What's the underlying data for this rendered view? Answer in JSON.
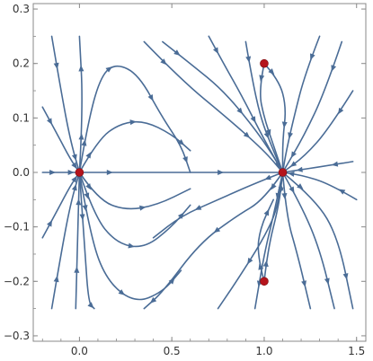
{
  "chart_data": {
    "type": "scatter",
    "subtype": "stream plot",
    "title": "",
    "xlabel": "",
    "ylabel": "",
    "xlim": [
      -0.25,
      1.55
    ],
    "ylim": [
      -0.31,
      0.31
    ],
    "x_ticks": [
      {
        "value": 0.0,
        "label": "0.0"
      },
      {
        "value": 0.5,
        "label": "0.5"
      },
      {
        "value": 1.0,
        "label": "1.0"
      },
      {
        "value": 1.5,
        "label": "1.5"
      }
    ],
    "y_ticks": [
      {
        "value": 0.3,
        "label": "0.3"
      },
      {
        "value": 0.2,
        "label": "0.2"
      },
      {
        "value": 0.1,
        "label": "0.1"
      },
      {
        "value": 0.0,
        "label": "0.0"
      },
      {
        "value": -0.1,
        "label": "−0.1"
      },
      {
        "value": -0.2,
        "label": "−0.2"
      },
      {
        "value": -0.3,
        "label": "−0.3"
      }
    ],
    "grid": false,
    "legend": "none",
    "points": [
      {
        "x": 0.0,
        "y": 0.0
      },
      {
        "x": 1.1,
        "y": 0.0
      },
      {
        "x": 1.0,
        "y": 0.2
      },
      {
        "x": 1.0,
        "y": -0.2
      }
    ],
    "streamlines": [
      [
        [
          -0.2,
          0.0
        ],
        [
          -0.1,
          0.0
        ],
        [
          0.0,
          0.0
        ]
      ],
      [
        [
          0.0,
          0.0
        ],
        [
          0.3,
          0.0
        ],
        [
          0.6,
          0.0
        ],
        [
          0.9,
          0.0
        ],
        [
          1.1,
          0.0
        ]
      ],
      [
        [
          1.5,
          -0.05
        ],
        [
          1.35,
          -0.02
        ],
        [
          1.2,
          -0.005
        ],
        [
          1.1,
          0.0
        ]
      ],
      [
        [
          1.48,
          0.02
        ],
        [
          1.3,
          0.01
        ],
        [
          1.1,
          0.0
        ]
      ],
      [
        [
          -0.15,
          0.25
        ],
        [
          -0.1,
          0.15
        ],
        [
          -0.05,
          0.06
        ],
        [
          0.0,
          0.0
        ]
      ],
      [
        [
          -0.2,
          0.12
        ],
        [
          -0.12,
          0.07
        ],
        [
          -0.05,
          0.025
        ],
        [
          0.0,
          0.0
        ]
      ],
      [
        [
          -0.15,
          -0.25
        ],
        [
          -0.1,
          -0.15
        ],
        [
          -0.05,
          -0.06
        ],
        [
          0.0,
          0.0
        ]
      ],
      [
        [
          -0.2,
          -0.12
        ],
        [
          -0.12,
          -0.07
        ],
        [
          -0.05,
          -0.025
        ],
        [
          0.0,
          0.0
        ]
      ],
      [
        [
          -0.02,
          -0.25
        ],
        [
          -0.01,
          -0.12
        ],
        [
          0.0,
          0.0
        ]
      ],
      [
        [
          0.0,
          0.0
        ],
        [
          0.02,
          0.12
        ],
        [
          0.0,
          0.25
        ]
      ],
      [
        [
          0.0,
          0.0
        ],
        [
          0.05,
          0.1
        ],
        [
          0.12,
          0.18
        ],
        [
          0.2,
          0.2
        ],
        [
          0.32,
          0.18
        ],
        [
          0.45,
          0.1
        ],
        [
          0.55,
          0.05
        ],
        [
          0.6,
          0.0
        ]
      ],
      [
        [
          0.0,
          0.0
        ],
        [
          0.1,
          0.06
        ],
        [
          0.22,
          0.09
        ],
        [
          0.35,
          0.095
        ],
        [
          0.5,
          0.07
        ],
        [
          0.6,
          0.04
        ]
      ],
      [
        [
          0.0,
          0.0
        ],
        [
          0.1,
          -0.05
        ],
        [
          0.25,
          -0.07
        ],
        [
          0.42,
          -0.06
        ],
        [
          0.6,
          -0.03
        ]
      ],
      [
        [
          0.0,
          0.0
        ],
        [
          0.08,
          -0.08
        ],
        [
          0.2,
          -0.13
        ],
        [
          0.35,
          -0.14
        ],
        [
          0.5,
          -0.1
        ],
        [
          0.6,
          -0.06
        ]
      ],
      [
        [
          0.0,
          0.0
        ],
        [
          0.06,
          -0.12
        ],
        [
          0.15,
          -0.2
        ],
        [
          0.3,
          -0.24
        ],
        [
          0.45,
          -0.22
        ],
        [
          0.55,
          -0.18
        ]
      ],
      [
        [
          0.0,
          0.0
        ],
        [
          0.03,
          -0.15
        ],
        [
          0.05,
          -0.24
        ],
        [
          0.08,
          -0.25
        ]
      ],
      [
        [
          0.45,
          0.24
        ],
        [
          0.6,
          0.2
        ],
        [
          0.78,
          0.15
        ],
        [
          0.95,
          0.08
        ],
        [
          1.05,
          0.03
        ],
        [
          1.1,
          0.0
        ]
      ],
      [
        [
          0.35,
          0.24
        ],
        [
          0.55,
          0.17
        ],
        [
          0.8,
          0.1
        ],
        [
          1.0,
          0.04
        ],
        [
          1.1,
          0.0
        ]
      ],
      [
        [
          0.7,
          0.25
        ],
        [
          0.78,
          0.2
        ],
        [
          0.88,
          0.14
        ],
        [
          1.0,
          0.06
        ],
        [
          1.1,
          0.0
        ]
      ],
      [
        [
          0.9,
          0.24
        ],
        [
          0.93,
          0.18
        ],
        [
          0.98,
          0.1
        ],
        [
          1.05,
          0.04
        ],
        [
          1.1,
          0.0
        ]
      ],
      [
        [
          1.3,
          0.25
        ],
        [
          1.22,
          0.18
        ],
        [
          1.16,
          0.1
        ],
        [
          1.12,
          0.04
        ],
        [
          1.1,
          0.0
        ]
      ],
      [
        [
          1.42,
          0.24
        ],
        [
          1.33,
          0.15
        ],
        [
          1.22,
          0.07
        ],
        [
          1.1,
          0.0
        ]
      ],
      [
        [
          1.48,
          0.15
        ],
        [
          1.35,
          0.08
        ],
        [
          1.22,
          0.03
        ],
        [
          1.1,
          0.0
        ]
      ],
      [
        [
          1.0,
          0.2
        ],
        [
          0.97,
          0.15
        ],
        [
          1.0,
          0.1
        ],
        [
          1.05,
          0.05
        ],
        [
          1.1,
          0.0
        ]
      ],
      [
        [
          1.0,
          0.2
        ],
        [
          1.08,
          0.17
        ],
        [
          1.12,
          0.12
        ],
        [
          1.1,
          0.06
        ],
        [
          1.1,
          0.0
        ]
      ],
      [
        [
          1.1,
          0.0
        ],
        [
          1.08,
          -0.06
        ],
        [
          1.0,
          -0.12
        ],
        [
          0.85,
          -0.2
        ],
        [
          0.75,
          -0.25
        ]
      ],
      [
        [
          1.1,
          0.0
        ],
        [
          1.0,
          -0.05
        ],
        [
          0.85,
          -0.08
        ],
        [
          0.65,
          -0.13
        ],
        [
          0.45,
          -0.22
        ],
        [
          0.35,
          -0.25
        ]
      ],
      [
        [
          1.1,
          0.0
        ],
        [
          0.95,
          -0.02
        ],
        [
          0.75,
          -0.05
        ],
        [
          0.55,
          -0.08
        ],
        [
          0.4,
          -0.12
        ]
      ],
      [
        [
          1.1,
          0.0
        ],
        [
          1.12,
          -0.08
        ],
        [
          1.18,
          -0.15
        ],
        [
          1.25,
          -0.25
        ]
      ],
      [
        [
          1.1,
          0.0
        ],
        [
          1.2,
          -0.06
        ],
        [
          1.3,
          -0.14
        ],
        [
          1.38,
          -0.25
        ]
      ],
      [
        [
          1.1,
          0.0
        ],
        [
          1.28,
          -0.05
        ],
        [
          1.4,
          -0.12
        ],
        [
          1.48,
          -0.25
        ]
      ],
      [
        [
          1.1,
          0.0
        ],
        [
          1.05,
          -0.08
        ],
        [
          1.0,
          -0.15
        ],
        [
          0.95,
          -0.25
        ]
      ],
      [
        [
          1.0,
          -0.2
        ],
        [
          1.02,
          -0.14
        ],
        [
          1.08,
          -0.06
        ],
        [
          1.1,
          0.0
        ]
      ],
      [
        [
          1.0,
          -0.2
        ],
        [
          0.96,
          -0.15
        ],
        [
          0.98,
          -0.1
        ],
        [
          1.05,
          -0.05
        ]
      ]
    ]
  }
}
